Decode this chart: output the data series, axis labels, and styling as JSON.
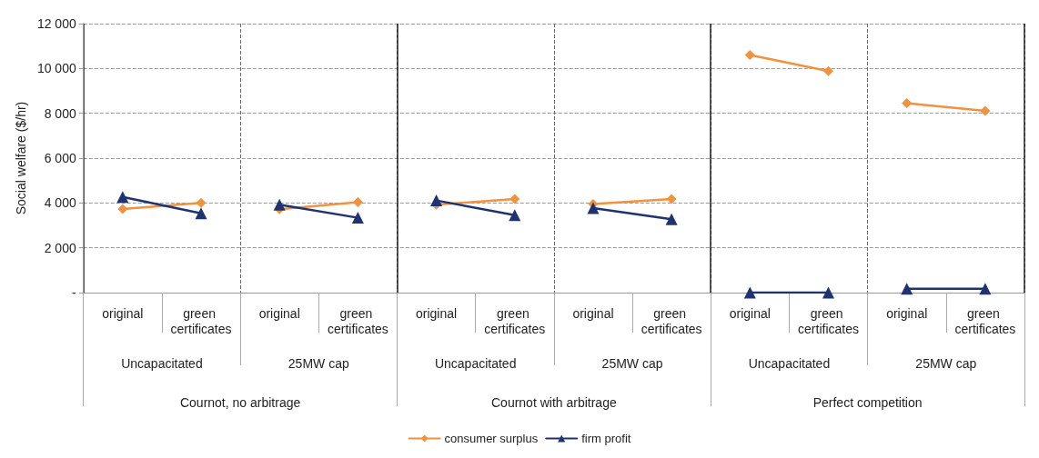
{
  "chart_data": {
    "type": "line",
    "ylabel": "Social welfare ($/hr)",
    "categories": [
      "original",
      "green certificates",
      "original",
      "green certificates",
      "original",
      "green certificates",
      "original",
      "green certificates",
      "original",
      "green certificates",
      "original",
      "green certificates"
    ],
    "series": [
      {
        "name": "consumer surplus",
        "color": "#f0923e",
        "marker": "diamond",
        "values": [
          3730,
          4000,
          null,
          null,
          null,
          null,
          null,
          null,
          null,
          null,
          null,
          null
        ]
      },
      {
        "color": "#f0923e",
        "marker": "diamond",
        "values": [
          null,
          null,
          3720,
          4030,
          null,
          null,
          null,
          null,
          null,
          null,
          null,
          null
        ]
      },
      {
        "color": "#f0923e",
        "marker": "diamond",
        "values": [
          null,
          null,
          null,
          null,
          3920,
          4180,
          null,
          null,
          null,
          null,
          null,
          null
        ]
      },
      {
        "color": "#f0923e",
        "marker": "diamond",
        "values": [
          null,
          null,
          null,
          null,
          null,
          null,
          3950,
          4180,
          null,
          null,
          null,
          null
        ]
      },
      {
        "color": "#f0923e",
        "marker": "diamond",
        "values": [
          null,
          null,
          null,
          null,
          null,
          null,
          null,
          null,
          10600,
          9880,
          null,
          null
        ]
      },
      {
        "color": "#f0923e",
        "marker": "diamond",
        "values": [
          null,
          null,
          null,
          null,
          null,
          null,
          null,
          null,
          null,
          null,
          8450,
          8110
        ]
      },
      {
        "name": "firm profit",
        "color": "#1f3370",
        "marker": "triangle",
        "values": [
          4270,
          3540,
          null,
          null,
          null,
          null,
          null,
          null,
          null,
          null,
          null,
          null
        ]
      },
      {
        "color": "#1f3370",
        "marker": "triangle",
        "values": [
          null,
          null,
          3920,
          3340,
          null,
          null,
          null,
          null,
          null,
          null,
          null,
          null
        ]
      },
      {
        "color": "#1f3370",
        "marker": "triangle",
        "values": [
          null,
          null,
          null,
          null,
          4110,
          3460,
          null,
          null,
          null,
          null,
          null,
          null
        ]
      },
      {
        "color": "#1f3370",
        "marker": "triangle",
        "values": [
          null,
          null,
          null,
          null,
          null,
          null,
          3770,
          3270,
          null,
          null,
          null,
          null
        ]
      },
      {
        "color": "#1f3370",
        "marker": "triangle",
        "values": [
          null,
          null,
          null,
          null,
          null,
          null,
          null,
          null,
          0,
          0,
          null,
          null
        ]
      },
      {
        "color": "#1f3370",
        "marker": "triangle",
        "values": [
          null,
          null,
          null,
          null,
          null,
          null,
          null,
          null,
          null,
          null,
          170,
          170
        ]
      }
    ],
    "ylim": [
      0,
      12000
    ],
    "yticks": [
      {
        "value": 0,
        "label": "-"
      },
      {
        "value": 2000,
        "label": "2 000"
      },
      {
        "value": 4000,
        "label": "4 000"
      },
      {
        "value": 6000,
        "label": "6 000"
      },
      {
        "value": 8000,
        "label": "8 000"
      },
      {
        "value": 10000,
        "label": "10 000"
      },
      {
        "value": 12000,
        "label": "12 000"
      }
    ],
    "annotations": [
      "Uncapacitated",
      "25MW cap",
      "Uncapacitated",
      "25MW cap",
      "Uncapacitated",
      "25MW cap",
      "Cournot, no arbitrage",
      "Cournot with arbitrage",
      "Perfect competition"
    ],
    "grid": "y",
    "legend": "bottom"
  }
}
